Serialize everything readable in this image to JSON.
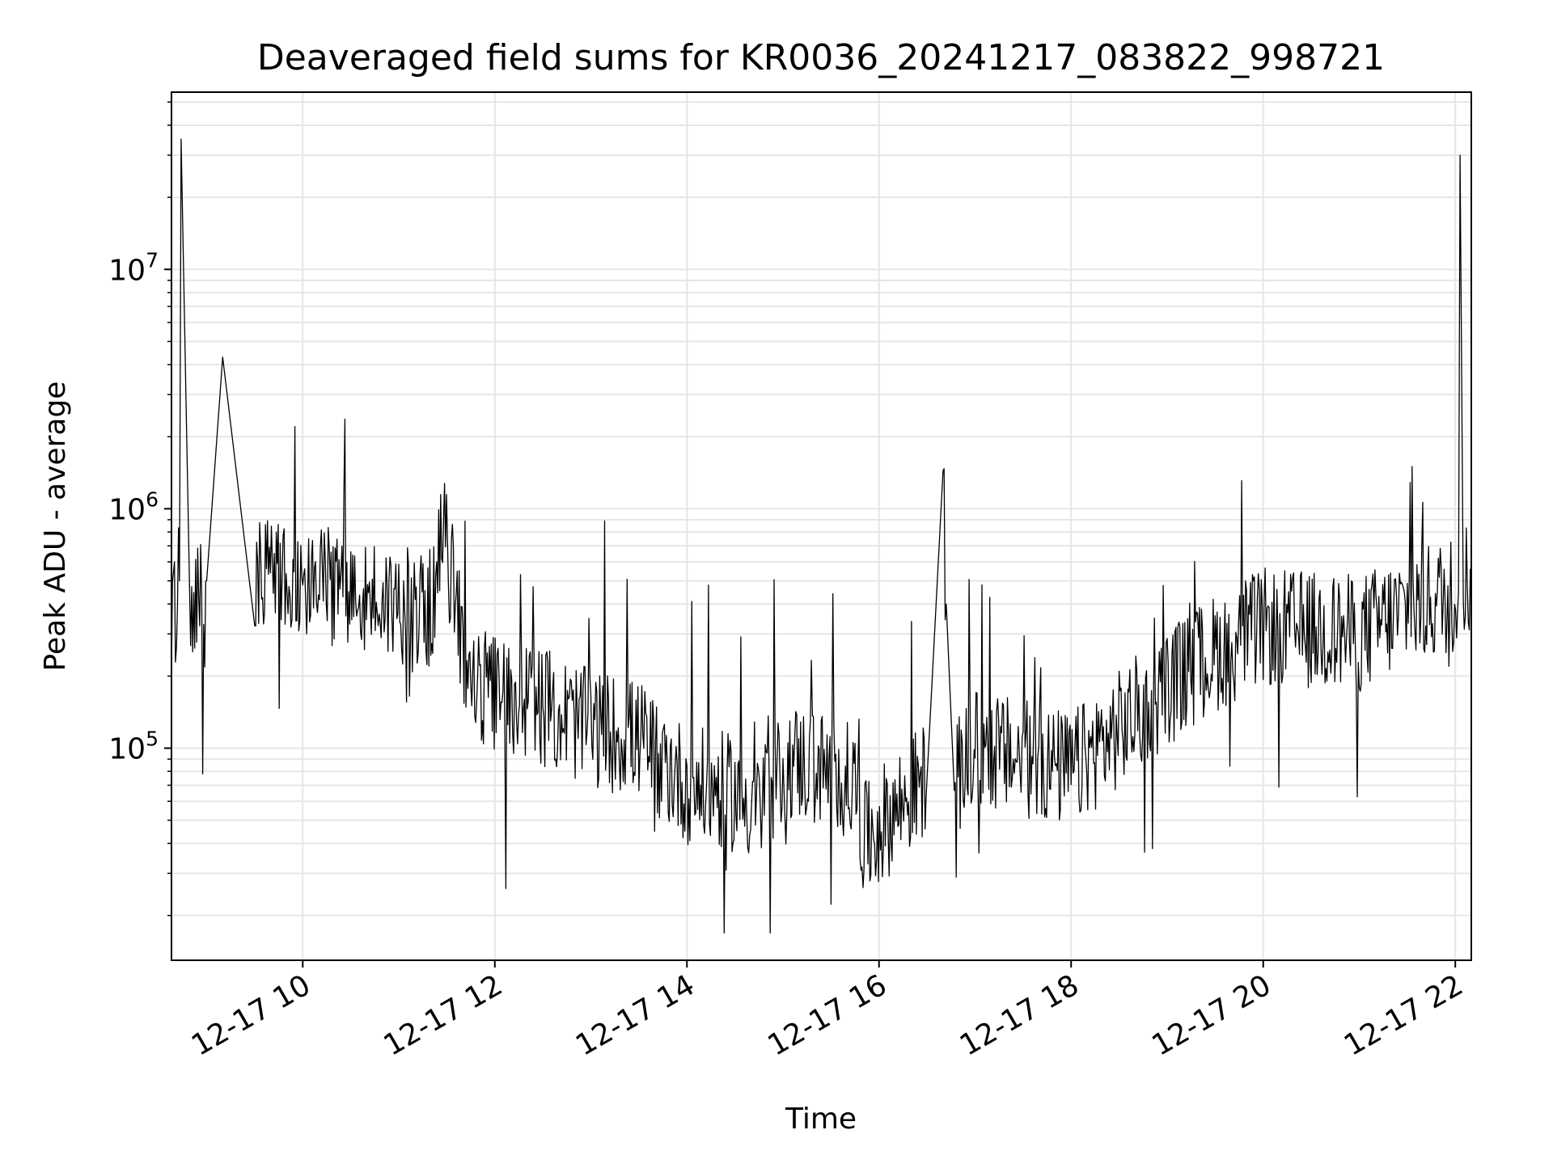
{
  "chart_data": {
    "type": "line",
    "title": "Deaveraged field sums for KR0036_20241217_083822_998721",
    "xlabel": "Time",
    "ylabel": "Peak ADU - average",
    "y_scale": "log",
    "grid": true,
    "xlim": [
      "2024-12-17 08:38",
      "2024-12-17 22:10"
    ],
    "ylim": [
      13000,
      55000000
    ],
    "x_ticks": [
      {
        "value": "2024-12-17 10:00",
        "label": "12-17 10"
      },
      {
        "value": "2024-12-17 12:00",
        "label": "12-17 12"
      },
      {
        "value": "2024-12-17 14:00",
        "label": "12-17 14"
      },
      {
        "value": "2024-12-17 16:00",
        "label": "12-17 16"
      },
      {
        "value": "2024-12-17 18:00",
        "label": "12-17 18"
      },
      {
        "value": "2024-12-17 20:00",
        "label": "12-17 20"
      },
      {
        "value": "2024-12-17 22:00",
        "label": "12-17 22"
      }
    ],
    "y_ticks": [
      {
        "value": 100000,
        "base": "10",
        "exp": "5"
      },
      {
        "value": 1000000,
        "base": "10",
        "exp": "6"
      },
      {
        "value": 10000000,
        "base": "10",
        "exp": "7"
      }
    ],
    "line_color": "#000000",
    "series": [
      {
        "x": [
          "2024-12-17 08:38",
          "2024-12-17 08:43",
          "2024-12-17 08:44",
          "2024-12-17 08:50",
          "2024-12-17 09:00",
          "2024-12-17 09:10",
          "2024-12-17 09:30",
          "2024-12-17 10:00",
          "2024-12-17 10:30",
          "2024-12-17 11:00",
          "2024-12-17 11:20",
          "2024-12-17 11:28",
          "2024-12-17 11:45",
          "2024-12-17 12:30",
          "2024-12-17 13:00",
          "2024-12-17 13:30",
          "2024-12-17 14:00",
          "2024-12-17 14:30",
          "2024-12-17 14:52",
          "2024-12-17 15:00",
          "2024-12-17 15:30",
          "2024-12-17 15:45",
          "2024-12-17 15:50",
          "2024-12-17 16:10",
          "2024-12-17 16:30",
          "2024-12-17 16:40",
          "2024-12-17 16:42",
          "2024-12-17 16:47",
          "2024-12-17 17:00",
          "2024-12-17 17:30",
          "2024-12-17 18:00",
          "2024-12-17 18:30",
          "2024-12-17 19:00",
          "2024-12-17 19:30",
          "2024-12-17 20:00",
          "2024-12-17 20:30",
          "2024-12-17 21:00",
          "2024-12-17 21:30",
          "2024-12-17 21:50",
          "2024-12-17 22:02",
          "2024-12-17 22:03",
          "2024-12-17 22:05",
          "2024-12-17 22:10"
        ],
        "y": [
          300000,
          500000,
          35000000,
          350000,
          500000,
          4300000,
          550000,
          500000,
          450000,
          400000,
          380000,
          800000,
          180000,
          150000,
          120000,
          110000,
          70000,
          65000,
          55000,
          90000,
          80000,
          70000,
          40000,
          55000,
          75000,
          1400000,
          400000,
          70000,
          100000,
          90000,
          80000,
          120000,
          180000,
          250000,
          320000,
          310000,
          300000,
          380000,
          420000,
          450000,
          30000000,
          550000,
          480000
        ]
      }
    ]
  }
}
